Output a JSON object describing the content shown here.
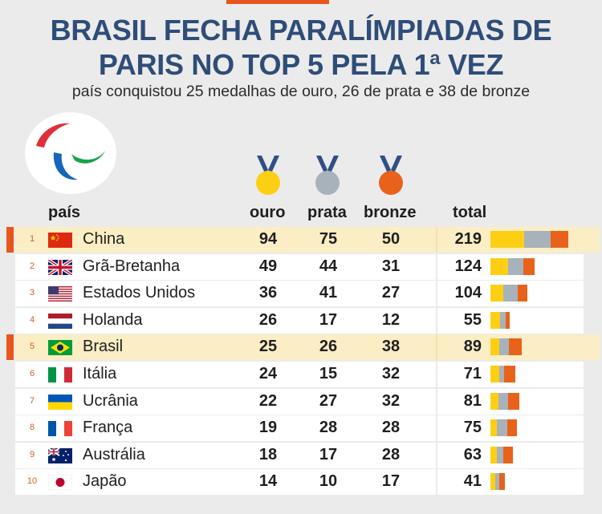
{
  "header": {
    "title_line1": "BRASIL FECHA PARALÍMPIADAS DE",
    "title_line2": "PARIS NO TOP 5 PELA 1ª VEZ",
    "subtitle": "país conquistou 25 medalhas de ouro, 26 de prata e 38 de bronze"
  },
  "columns": {
    "country": "país",
    "gold": "ouro",
    "silver": "prata",
    "bronze": "bronze",
    "total": "total"
  },
  "colors": {
    "gold": "#fdcf14",
    "silver": "#a7b2ba",
    "bronze": "#e9621a",
    "highlight": "#fbedc4",
    "accent": "#e9561d",
    "title": "#2e4d78"
  },
  "icons": {
    "logo": "paralympic-agitos-icon",
    "gold": "gold-medal-icon",
    "silver": "silver-medal-icon",
    "bronze": "bronze-medal-icon"
  },
  "chart_data": {
    "type": "table",
    "rows": [
      {
        "rank": "1",
        "country": "China",
        "flag": "china-flag-icon",
        "gold": 94,
        "silver": 75,
        "bronze": 50,
        "total": 219,
        "highlight": true
      },
      {
        "rank": "2",
        "country": "Grã-Bretanha",
        "flag": "uk-flag-icon",
        "gold": 49,
        "silver": 44,
        "bronze": 31,
        "total": 124,
        "highlight": false
      },
      {
        "rank": "3",
        "country": "Estados Unidos",
        "flag": "usa-flag-icon",
        "gold": 36,
        "silver": 41,
        "bronze": 27,
        "total": 104,
        "highlight": false
      },
      {
        "rank": "4",
        "country": "Holanda",
        "flag": "netherlands-flag-icon",
        "gold": 26,
        "silver": 17,
        "bronze": 12,
        "total": 55,
        "highlight": false
      },
      {
        "rank": "5",
        "country": "Brasil",
        "flag": "brazil-flag-icon",
        "gold": 25,
        "silver": 26,
        "bronze": 38,
        "total": 89,
        "highlight": true
      },
      {
        "rank": "6",
        "country": "Itália",
        "flag": "italy-flag-icon",
        "gold": 24,
        "silver": 15,
        "bronze": 32,
        "total": 71,
        "highlight": false
      },
      {
        "rank": "7",
        "country": "Ucrânia",
        "flag": "ukraine-flag-icon",
        "gold": 22,
        "silver": 27,
        "bronze": 32,
        "total": 81,
        "highlight": false
      },
      {
        "rank": "8",
        "country": "França",
        "flag": "france-flag-icon",
        "gold": 19,
        "silver": 28,
        "bronze": 28,
        "total": 75,
        "highlight": false
      },
      {
        "rank": "9",
        "country": "Austrália",
        "flag": "australia-flag-icon",
        "gold": 18,
        "silver": 17,
        "bronze": 28,
        "total": 63,
        "highlight": false
      },
      {
        "rank": "10",
        "country": "Japão",
        "flag": "japan-flag-icon",
        "gold": 14,
        "silver": 10,
        "bronze": 17,
        "total": 41,
        "highlight": false
      }
    ]
  }
}
